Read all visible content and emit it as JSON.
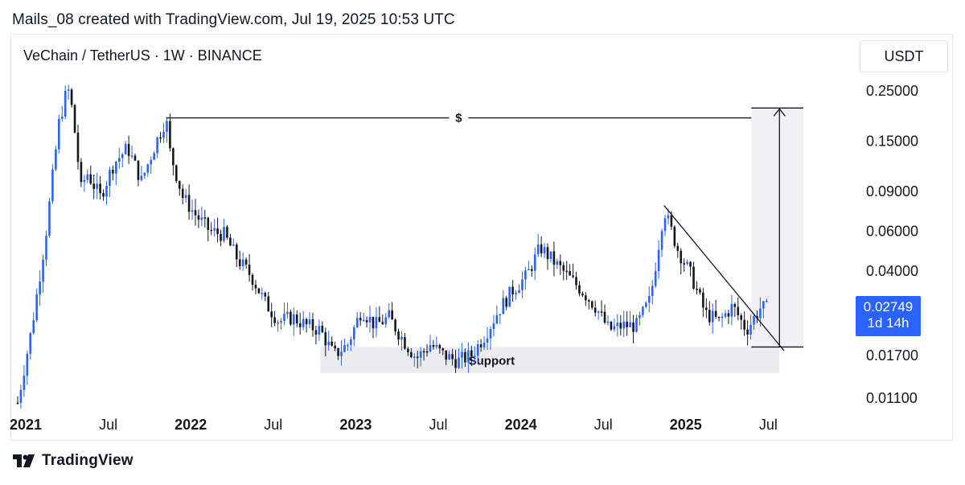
{
  "header": {
    "attribution": "Mails_08 created with TradingView.com, Jul 19, 2025 10:53 UTC"
  },
  "symbol": {
    "title": "VeChain / TetherUS · 1W · BINANCE"
  },
  "axis": {
    "currency": "USDT"
  },
  "last_price": {
    "value": "0.02749",
    "countdown": "1d 14h"
  },
  "footer": {
    "brand": "TradingView"
  },
  "colors": {
    "up": "#2962ff",
    "down": "#131722",
    "zone": "#ececee",
    "line": "#131722"
  },
  "chart_data": {
    "type": "candlestick",
    "scale": "log",
    "y_ticks": [
      "0.25000",
      "0.15000",
      "0.09000",
      "0.06000",
      "0.04000",
      "0.01700",
      "0.01100"
    ],
    "x_ticks": [
      {
        "label": "2021",
        "bold": true
      },
      {
        "label": "Jul",
        "bold": false
      },
      {
        "label": "2022",
        "bold": true
      },
      {
        "label": "Jul",
        "bold": false
      },
      {
        "label": "2023",
        "bold": true
      },
      {
        "label": "Jul",
        "bold": false
      },
      {
        "label": "2024",
        "bold": true
      },
      {
        "label": "Jul",
        "bold": false
      },
      {
        "label": "2025",
        "bold": true
      },
      {
        "label": "Jul",
        "bold": false
      }
    ],
    "close_path": [
      [
        "2021-01",
        0.0105
      ],
      [
        "2021-02",
        0.022
      ],
      [
        "2021-03",
        0.055
      ],
      [
        "2021-04",
        0.18
      ],
      [
        "2021-04-20",
        0.26
      ],
      [
        "2021-05",
        0.2
      ],
      [
        "2021-05-20",
        0.09
      ],
      [
        "2021-06",
        0.11
      ],
      [
        "2021-07",
        0.085
      ],
      [
        "2021-08",
        0.12
      ],
      [
        "2021-09",
        0.14
      ],
      [
        "2021-10",
        0.1
      ],
      [
        "2021-11",
        0.145
      ],
      [
        "2021-11-25",
        0.19
      ],
      [
        "2021-12",
        0.14
      ],
      [
        "2022-01",
        0.085
      ],
      [
        "2022-02",
        0.07
      ],
      [
        "2022-03",
        0.06
      ],
      [
        "2022-04",
        0.058
      ],
      [
        "2022-05",
        0.045
      ],
      [
        "2022-06",
        0.038
      ],
      [
        "2022-07",
        0.029
      ],
      [
        "2022-08",
        0.024
      ],
      [
        "2022-09",
        0.025
      ],
      [
        "2022-10",
        0.023
      ],
      [
        "2022-11",
        0.022
      ],
      [
        "2022-12",
        0.017
      ],
      [
        "2023-01",
        0.019
      ],
      [
        "2023-02",
        0.027
      ],
      [
        "2023-03",
        0.023
      ],
      [
        "2023-04",
        0.025
      ],
      [
        "2023-05",
        0.02
      ],
      [
        "2023-06",
        0.0165
      ],
      [
        "2023-07",
        0.019
      ],
      [
        "2023-08",
        0.017
      ],
      [
        "2023-09",
        0.016
      ],
      [
        "2023-10",
        0.017
      ],
      [
        "2023-11",
        0.021
      ],
      [
        "2023-12",
        0.027
      ],
      [
        "2024-01",
        0.033
      ],
      [
        "2024-02",
        0.038
      ],
      [
        "2024-03",
        0.051
      ],
      [
        "2024-04",
        0.044
      ],
      [
        "2024-05",
        0.038
      ],
      [
        "2024-06",
        0.033
      ],
      [
        "2024-07",
        0.028
      ],
      [
        "2024-08",
        0.022
      ],
      [
        "2024-09",
        0.023
      ],
      [
        "2024-10",
        0.023
      ],
      [
        "2024-11",
        0.03
      ],
      [
        "2024-12",
        0.075
      ],
      [
        "2025-01",
        0.05
      ],
      [
        "2025-02",
        0.038
      ],
      [
        "2025-03",
        0.026
      ],
      [
        "2025-04",
        0.024
      ],
      [
        "2025-05",
        0.028
      ],
      [
        "2025-06",
        0.022
      ],
      [
        "2025-07",
        0.0275
      ]
    ],
    "annotations": [
      {
        "type": "horizontal",
        "label": "$",
        "price": 0.19
      },
      {
        "type": "zone",
        "label": "Support",
        "price_top": 0.0185,
        "price_bottom": 0.0142
      },
      {
        "type": "trendline",
        "from": [
          "2024-12",
          0.078
        ],
        "to": [
          "2025-07",
          0.0185
        ]
      },
      {
        "type": "measure",
        "from_price": 0.0185,
        "to_price": 0.21
      }
    ]
  }
}
